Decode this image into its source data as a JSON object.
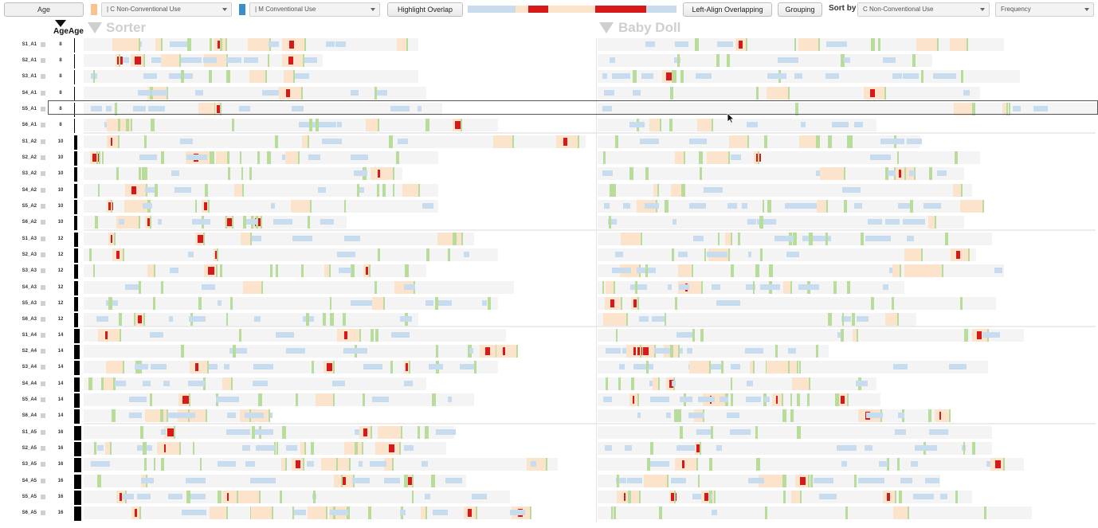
{
  "toolbar": {
    "age_button": "Age",
    "select_c": "| C Non-Conventional Use",
    "select_m": "| M Conventional Use",
    "highlight_button": "Highlight Overlap",
    "left_align_button": "Left-Align Overlapping",
    "grouping_button": "Grouping",
    "sort_by_label": "Sort by",
    "sort_select": "C Non-Conventional Use",
    "sort_order_select": "Frequency"
  },
  "headers": {
    "age_col_1": "Age",
    "age_col_2": "Age"
  },
  "panels": [
    {
      "title": "Sorter"
    },
    {
      "title": "Baby Doll"
    }
  ],
  "colors": {
    "non_conventional": "#fbe3cc",
    "conventional": "#c7dcee",
    "overlap": "#d7191c",
    "green_marker": "#b8dc9a",
    "track": "#f4f4f4"
  },
  "rows": [
    {
      "label": "S1_A1",
      "age": "8"
    },
    {
      "label": "S2_A1",
      "age": "8"
    },
    {
      "label": "S3_A1",
      "age": "8"
    },
    {
      "label": "S4_A1",
      "age": "8"
    },
    {
      "label": "S5_A1",
      "age": "8"
    },
    {
      "label": "S6_A1",
      "age": "8"
    },
    {
      "label": "S1_A2",
      "age": "10"
    },
    {
      "label": "S2_A2",
      "age": "10"
    },
    {
      "label": "S3_A2",
      "age": "10"
    },
    {
      "label": "S4_A2",
      "age": "10"
    },
    {
      "label": "S5_A2",
      "age": "10"
    },
    {
      "label": "S6_A2",
      "age": "10"
    },
    {
      "label": "S1_A3",
      "age": "12"
    },
    {
      "label": "S2_A3",
      "age": "12"
    },
    {
      "label": "S3_A3",
      "age": "12"
    },
    {
      "label": "S4_A3",
      "age": "12"
    },
    {
      "label": "S5_A3",
      "age": "12"
    },
    {
      "label": "S6_A3",
      "age": "12"
    },
    {
      "label": "S1_A4",
      "age": "14"
    },
    {
      "label": "S2_A4",
      "age": "14"
    },
    {
      "label": "S3_A4",
      "age": "14"
    },
    {
      "label": "S4_A4",
      "age": "14"
    },
    {
      "label": "S5_A4",
      "age": "14"
    },
    {
      "label": "S6_A4",
      "age": "14"
    },
    {
      "label": "S1_A5",
      "age": "16"
    },
    {
      "label": "S2_A5",
      "age": "16"
    },
    {
      "label": "S3_A5",
      "age": "16"
    },
    {
      "label": "S4_A5",
      "age": "16"
    },
    {
      "label": "S5_A5",
      "age": "16"
    },
    {
      "label": "S6_A5",
      "age": "16"
    }
  ]
}
